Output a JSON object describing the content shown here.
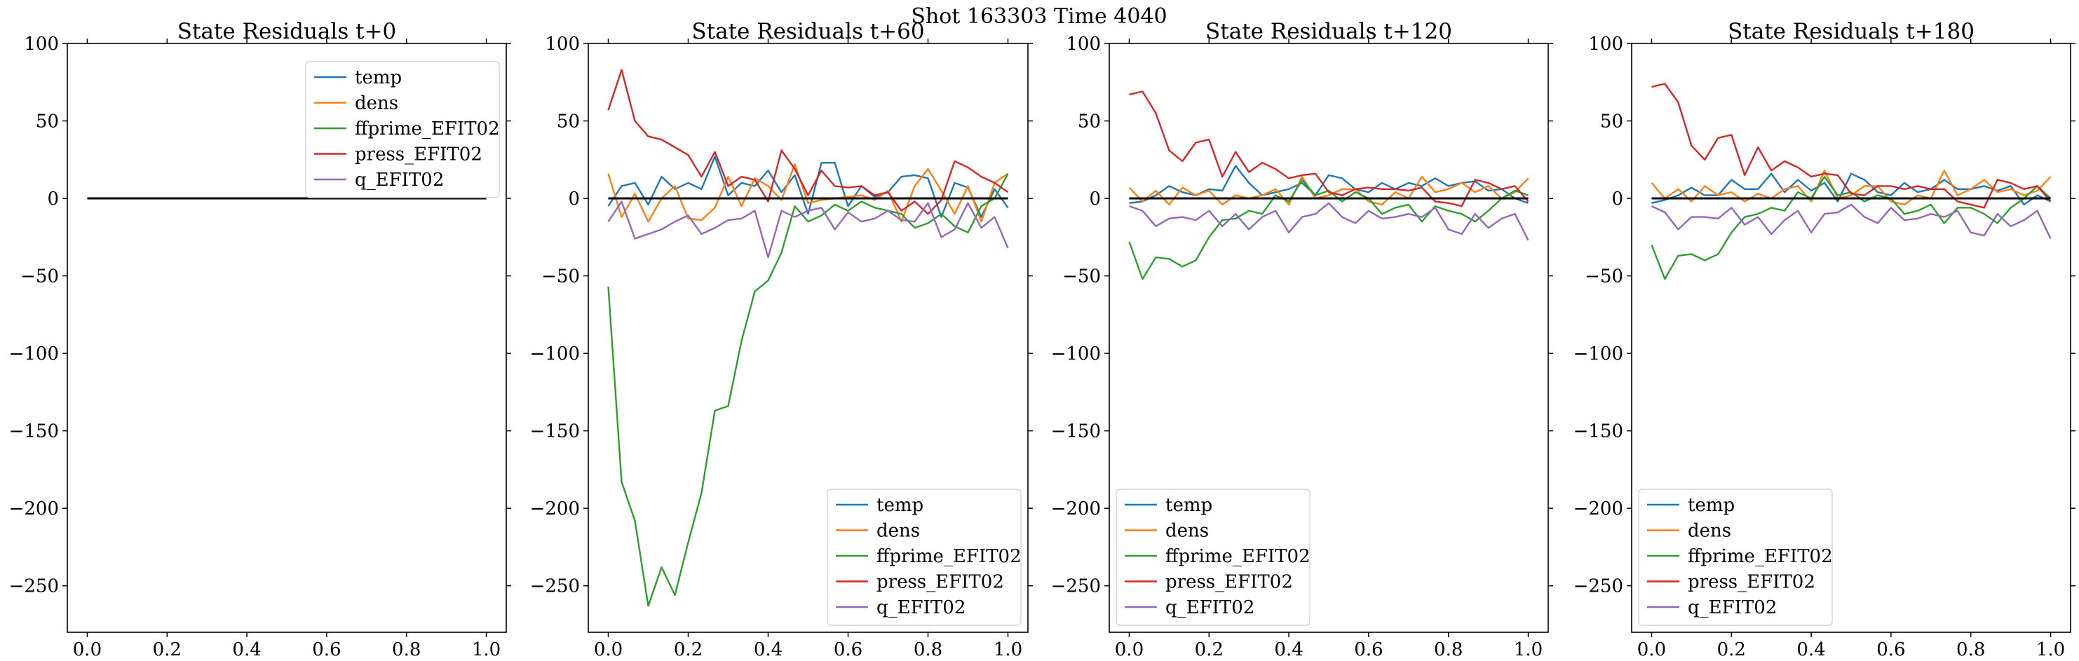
{
  "suptitle": "Shot 163303   Time 4040",
  "chart_data": [
    {
      "type": "line",
      "title": "State Residuals t+0",
      "xlim": [
        -0.05,
        1.05
      ],
      "ylim": [
        -280,
        100
      ],
      "xticks": [
        0.0,
        0.2,
        0.4,
        0.6,
        0.8,
        1.0
      ],
      "xtick_labels": [
        "0.0",
        "0.2",
        "0.4",
        "0.6",
        "0.8",
        "1.0"
      ],
      "yticks": [
        100,
        50,
        0,
        -50,
        -100,
        -150,
        -200,
        -250
      ],
      "ytick_labels": [
        "100",
        "50",
        "0",
        "−50",
        "−100",
        "−150",
        "−200",
        "−250"
      ],
      "legend_position": "top-right",
      "zero_line": true,
      "x": [
        0.0,
        0.0333,
        0.0667,
        0.1,
        0.1333,
        0.1667,
        0.2,
        0.2333,
        0.2667,
        0.3,
        0.3333,
        0.3667,
        0.4,
        0.4333,
        0.4667,
        0.5,
        0.5333,
        0.5667,
        0.6,
        0.6333,
        0.6667,
        0.7,
        0.7333,
        0.7667,
        0.8,
        0.8333,
        0.8667,
        0.9,
        0.9333,
        0.9667,
        1.0
      ],
      "series": [
        {
          "name": "temp",
          "color": "#1f77b4",
          "values": [
            0,
            0,
            0,
            0,
            0,
            0,
            0,
            0,
            0,
            0,
            0,
            0,
            0,
            0,
            0,
            0,
            0,
            0,
            0,
            0,
            0,
            0,
            0,
            0,
            0,
            0,
            0,
            0,
            0,
            0,
            0
          ]
        },
        {
          "name": "dens",
          "color": "#ff7f0e",
          "values": [
            0,
            0,
            0,
            0,
            0,
            0,
            0,
            0,
            0,
            0,
            0,
            0,
            0,
            0,
            0,
            0,
            0,
            0,
            0,
            0,
            0,
            0,
            0,
            0,
            0,
            0,
            0,
            0,
            0,
            0,
            0
          ]
        },
        {
          "name": "ffprime_EFIT02",
          "color": "#2ca02c",
          "values": [
            0,
            0,
            0,
            0,
            0,
            0,
            0,
            0,
            0,
            0,
            0,
            0,
            0,
            0,
            0,
            0,
            0,
            0,
            0,
            0,
            0,
            0,
            0,
            0,
            0,
            0,
            0,
            0,
            0,
            0,
            0
          ]
        },
        {
          "name": "press_EFIT02",
          "color": "#d62728",
          "values": [
            0,
            0,
            0,
            0,
            0,
            0,
            0,
            0,
            0,
            0,
            0,
            0,
            0,
            0,
            0,
            0,
            0,
            0,
            0,
            0,
            0,
            0,
            0,
            0,
            0,
            0,
            0,
            0,
            0,
            0,
            0
          ]
        },
        {
          "name": "q_EFIT02",
          "color": "#9467bd",
          "values": [
            0,
            0,
            0,
            0,
            0,
            0,
            0,
            0,
            0,
            0,
            0,
            0,
            0,
            0,
            0,
            0,
            0,
            0,
            0,
            0,
            0,
            0,
            0,
            0,
            0,
            0,
            0,
            0,
            0,
            0,
            0
          ]
        }
      ]
    },
    {
      "type": "line",
      "title": "State Residuals t+60",
      "xlim": [
        -0.05,
        1.05
      ],
      "ylim": [
        -280,
        100
      ],
      "xticks": [
        0.0,
        0.2,
        0.4,
        0.6,
        0.8,
        1.0
      ],
      "xtick_labels": [
        "0.0",
        "0.2",
        "0.4",
        "0.6",
        "0.8",
        "1.0"
      ],
      "yticks": [
        100,
        50,
        0,
        -50,
        -100,
        -150,
        -200,
        -250
      ],
      "ytick_labels": [
        "100",
        "50",
        "0",
        "−50",
        "−100",
        "−150",
        "−200",
        "−250"
      ],
      "legend_position": "bottom-right",
      "zero_line": true,
      "x": [
        0.0,
        0.0333,
        0.0667,
        0.1,
        0.1333,
        0.1667,
        0.2,
        0.2333,
        0.2667,
        0.3,
        0.3333,
        0.3667,
        0.4,
        0.4333,
        0.4667,
        0.5,
        0.5333,
        0.5667,
        0.6,
        0.6333,
        0.6667,
        0.7,
        0.7333,
        0.7667,
        0.8,
        0.8333,
        0.8667,
        0.9,
        0.9333,
        0.9667,
        1.0
      ],
      "series": [
        {
          "name": "temp",
          "color": "#1f77b4",
          "values": [
            -5,
            8,
            10,
            -4,
            14,
            6,
            10,
            6,
            27,
            2,
            10,
            8,
            18,
            4,
            15,
            -10,
            23,
            23,
            -5,
            8,
            1,
            4,
            14,
            15,
            13,
            -12,
            10,
            7,
            -12,
            6,
            -6
          ]
        },
        {
          "name": "dens",
          "color": "#ff7f0e",
          "values": [
            16,
            -12,
            3,
            -15,
            0,
            8,
            -13,
            -14,
            -6,
            14,
            -5,
            13,
            8,
            -1,
            22,
            -3,
            -1,
            0,
            1,
            2,
            -1,
            5,
            -15,
            8,
            19,
            5,
            -10,
            8,
            -15,
            10,
            16
          ]
        },
        {
          "name": "ffprime_EFIT02",
          "color": "#2ca02c",
          "values": [
            -57,
            -183,
            -208,
            -263,
            -238,
            -256,
            -222,
            -190,
            -137,
            -134,
            -92,
            -60,
            -53,
            -35,
            -5,
            -15,
            -11,
            -4,
            -8,
            -2,
            -6,
            -8,
            -10,
            -19,
            -16,
            -10,
            -18,
            -22,
            -5,
            0,
            16
          ]
        },
        {
          "name": "press_EFIT02",
          "color": "#d62728",
          "values": [
            57,
            83,
            50,
            40,
            38,
            33,
            28,
            14,
            30,
            8,
            14,
            12,
            -2,
            31,
            19,
            2,
            18,
            8,
            7,
            8,
            2,
            4,
            -8,
            -2,
            -10,
            -1,
            24,
            20,
            14,
            10,
            4
          ]
        },
        {
          "name": "q_EFIT02",
          "color": "#9467bd",
          "values": [
            -15,
            -2,
            -26,
            -23,
            -20,
            -15,
            -11,
            -23,
            -19,
            -14,
            -13,
            -8,
            -38,
            -8,
            -12,
            -8,
            -6,
            -20,
            -9,
            -15,
            -13,
            -8,
            -14,
            -15,
            -3,
            -25,
            -20,
            -3,
            -19,
            -12,
            -32
          ]
        }
      ]
    },
    {
      "type": "line",
      "title": "State Residuals t+120",
      "xlim": [
        -0.05,
        1.05
      ],
      "ylim": [
        -280,
        100
      ],
      "xticks": [
        0.0,
        0.2,
        0.4,
        0.6,
        0.8,
        1.0
      ],
      "xtick_labels": [
        "0.0",
        "0.2",
        "0.4",
        "0.6",
        "0.8",
        "1.0"
      ],
      "yticks": [
        100,
        50,
        0,
        -50,
        -100,
        -150,
        -200,
        -250
      ],
      "ytick_labels": [
        "100",
        "50",
        "0",
        "−50",
        "−100",
        "−150",
        "−200",
        "−250"
      ],
      "legend_position": "bottom-left",
      "zero_line": true,
      "x": [
        0.0,
        0.0333,
        0.0667,
        0.1,
        0.1333,
        0.1667,
        0.2,
        0.2333,
        0.2667,
        0.3,
        0.3333,
        0.3667,
        0.4,
        0.4333,
        0.4667,
        0.5,
        0.5333,
        0.5667,
        0.6,
        0.6333,
        0.6667,
        0.7,
        0.7333,
        0.7667,
        0.8,
        0.8333,
        0.8667,
        0.9,
        0.9333,
        0.9667,
        1.0
      ],
      "series": [
        {
          "name": "temp",
          "color": "#1f77b4",
          "values": [
            -3,
            -2,
            2,
            8,
            4,
            2,
            6,
            5,
            21,
            10,
            2,
            4,
            6,
            10,
            2,
            15,
            13,
            6,
            4,
            10,
            6,
            10,
            8,
            13,
            8,
            10,
            11,
            5,
            6,
            0,
            -3
          ]
        },
        {
          "name": "dens",
          "color": "#ff7f0e",
          "values": [
            7,
            -2,
            5,
            -4,
            7,
            2,
            5,
            -4,
            2,
            0,
            2,
            6,
            -4,
            14,
            0,
            2,
            6,
            6,
            -2,
            -4,
            4,
            0,
            14,
            4,
            6,
            10,
            4,
            8,
            0,
            4,
            13
          ]
        },
        {
          "name": "ffprime_EFIT02",
          "color": "#2ca02c",
          "values": [
            -28,
            -52,
            -38,
            -39,
            -44,
            -40,
            -25,
            -14,
            -13,
            -8,
            -10,
            2,
            -2,
            12,
            2,
            5,
            -2,
            4,
            0,
            -10,
            -6,
            -4,
            -15,
            -5,
            -8,
            -10,
            -15,
            -8,
            0,
            5,
            2
          ]
        },
        {
          "name": "press_EFIT02",
          "color": "#d62728",
          "values": [
            67,
            69,
            55,
            31,
            24,
            36,
            38,
            14,
            30,
            17,
            23,
            19,
            13,
            15,
            16,
            4,
            2,
            6,
            7,
            6,
            6,
            5,
            7,
            -2,
            -3,
            -5,
            12,
            10,
            6,
            8,
            -2
          ]
        },
        {
          "name": "q_EFIT02",
          "color": "#9467bd",
          "values": [
            -5,
            -8,
            -18,
            -13,
            -12,
            -14,
            -8,
            -18,
            -10,
            -20,
            -12,
            -8,
            -22,
            -12,
            -10,
            -3,
            -12,
            -16,
            -8,
            -13,
            -12,
            -10,
            -12,
            -6,
            -20,
            -23,
            -10,
            -19,
            -13,
            -10,
            -27
          ]
        }
      ]
    },
    {
      "type": "line",
      "title": "State Residuals t+180",
      "xlim": [
        -0.05,
        1.05
      ],
      "ylim": [
        -280,
        100
      ],
      "xticks": [
        0.0,
        0.2,
        0.4,
        0.6,
        0.8,
        1.0
      ],
      "xtick_labels": [
        "0.0",
        "0.2",
        "0.4",
        "0.6",
        "0.8",
        "1.0"
      ],
      "yticks": [
        100,
        50,
        0,
        -50,
        -100,
        -150,
        -200,
        -250
      ],
      "ytick_labels": [
        "100",
        "50",
        "0",
        "−50",
        "−100",
        "−150",
        "−200",
        "−250"
      ],
      "legend_position": "bottom-left",
      "zero_line": true,
      "x": [
        0.0,
        0.0333,
        0.0667,
        0.1,
        0.1333,
        0.1667,
        0.2,
        0.2333,
        0.2667,
        0.3,
        0.3333,
        0.3667,
        0.4,
        0.4333,
        0.4667,
        0.5,
        0.5333,
        0.5667,
        0.6,
        0.6333,
        0.6667,
        0.7,
        0.7333,
        0.7667,
        0.8,
        0.8333,
        0.8667,
        0.9,
        0.9333,
        0.9667,
        1.0
      ],
      "series": [
        {
          "name": "temp",
          "color": "#1f77b4",
          "values": [
            -3,
            -1,
            2,
            7,
            2,
            2,
            12,
            6,
            6,
            16,
            4,
            12,
            5,
            10,
            -2,
            16,
            12,
            4,
            2,
            10,
            4,
            6,
            12,
            6,
            6,
            8,
            5,
            8,
            -4,
            2,
            -2
          ]
        },
        {
          "name": "dens",
          "color": "#ff7f0e",
          "values": [
            10,
            0,
            6,
            -2,
            8,
            2,
            4,
            -2,
            3,
            0,
            6,
            8,
            -2,
            18,
            0,
            2,
            8,
            8,
            -2,
            -4,
            2,
            0,
            18,
            2,
            6,
            12,
            4,
            6,
            2,
            5,
            14
          ]
        },
        {
          "name": "ffprime_EFIT02",
          "color": "#2ca02c",
          "values": [
            -30,
            -52,
            -37,
            -36,
            -40,
            -36,
            -22,
            -12,
            -10,
            -6,
            -8,
            4,
            0,
            14,
            2,
            4,
            -2,
            2,
            0,
            -10,
            -8,
            -4,
            -16,
            -6,
            -6,
            -10,
            -16,
            -6,
            0,
            8,
            0
          ]
        },
        {
          "name": "press_EFIT02",
          "color": "#d62728",
          "values": [
            72,
            74,
            62,
            34,
            25,
            39,
            41,
            15,
            33,
            18,
            24,
            20,
            14,
            16,
            15,
            3,
            2,
            8,
            8,
            6,
            8,
            6,
            6,
            -2,
            -4,
            -6,
            12,
            10,
            6,
            8,
            -2
          ]
        },
        {
          "name": "q_EFIT02",
          "color": "#9467bd",
          "values": [
            -5,
            -9,
            -20,
            -12,
            -12,
            -13,
            -6,
            -17,
            -12,
            -23,
            -14,
            -8,
            -22,
            -10,
            -9,
            -4,
            -12,
            -16,
            -6,
            -14,
            -13,
            -10,
            -12,
            -8,
            -22,
            -24,
            -10,
            -18,
            -14,
            -8,
            -26
          ]
        }
      ]
    }
  ]
}
